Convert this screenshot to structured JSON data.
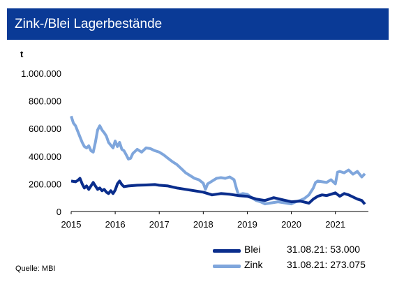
{
  "header": {
    "title": "Zink-/Blei Lagerbestände"
  },
  "source": "Quelle: MBI",
  "colors": {
    "header_bg": "#0a3a96",
    "blei": "#0a2d8c",
    "zink": "#7fa6dc"
  },
  "legend": [
    {
      "name": "Blei",
      "value_text": "31.08.21: 53.000",
      "color": "#0a2d8c"
    },
    {
      "name": "Zink",
      "value_text": "31.08.21: 273.075",
      "color": "#7fa6dc"
    }
  ],
  "chart_data": {
    "type": "line",
    "title": "",
    "ylabel": "t",
    "xlabel": "",
    "xlim": [
      2015,
      2021.75
    ],
    "ylim": [
      0,
      1000000
    ],
    "y_ticks": [
      0,
      200000,
      400000,
      600000,
      800000,
      1000000
    ],
    "y_tick_labels": [
      "0",
      "200.000",
      "400.000",
      "600.000",
      "800.000",
      "1.000.000"
    ],
    "x_ticks": [
      2015,
      2016,
      2017,
      2018,
      2019,
      2020,
      2021
    ],
    "x_tick_labels": [
      "2015",
      "2016",
      "2017",
      "2018",
      "2019",
      "2020",
      "2021"
    ],
    "grid": false,
    "legend_position": "bottom-right",
    "series": [
      {
        "name": "Zink",
        "x": [
          2015.0,
          2015.05,
          2015.1,
          2015.15,
          2015.2,
          2015.25,
          2015.3,
          2015.35,
          2015.4,
          2015.45,
          2015.5,
          2015.55,
          2015.6,
          2015.65,
          2015.7,
          2015.75,
          2015.8,
          2015.85,
          2015.9,
          2015.95,
          2016.0,
          2016.05,
          2016.1,
          2016.15,
          2016.2,
          2016.25,
          2016.3,
          2016.35,
          2016.4,
          2016.5,
          2016.6,
          2016.7,
          2016.8,
          2016.9,
          2017.0,
          2017.1,
          2017.2,
          2017.3,
          2017.4,
          2017.5,
          2017.6,
          2017.7,
          2017.8,
          2017.9,
          2018.0,
          2018.05,
          2018.1,
          2018.2,
          2018.3,
          2018.4,
          2018.5,
          2018.6,
          2018.7,
          2018.75,
          2018.8,
          2018.9,
          2019.0,
          2019.1,
          2019.2,
          2019.3,
          2019.4,
          2019.5,
          2019.6,
          2019.7,
          2019.8,
          2019.9,
          2020.0,
          2020.1,
          2020.2,
          2020.3,
          2020.4,
          2020.5,
          2020.55,
          2020.6,
          2020.7,
          2020.8,
          2020.9,
          2021.0,
          2021.05,
          2021.1,
          2021.2,
          2021.3,
          2021.4,
          2021.5,
          2021.6,
          2021.67
        ],
        "values": [
          690000,
          640000,
          620000,
          580000,
          540000,
          500000,
          470000,
          460000,
          475000,
          440000,
          430000,
          500000,
          590000,
          620000,
          590000,
          570000,
          545000,
          500000,
          480000,
          460000,
          510000,
          470000,
          500000,
          450000,
          440000,
          410000,
          380000,
          385000,
          420000,
          450000,
          430000,
          460000,
          455000,
          440000,
          430000,
          410000,
          385000,
          360000,
          340000,
          310000,
          280000,
          260000,
          240000,
          230000,
          205000,
          160000,
          200000,
          220000,
          240000,
          245000,
          240000,
          250000,
          230000,
          170000,
          120000,
          130000,
          125000,
          100000,
          80000,
          70000,
          55000,
          60000,
          65000,
          70000,
          65000,
          60000,
          55000,
          70000,
          80000,
          95000,
          120000,
          170000,
          210000,
          220000,
          215000,
          210000,
          230000,
          200000,
          285000,
          290000,
          280000,
          300000,
          270000,
          290000,
          250000,
          273075
        ]
      },
      {
        "name": "Blei",
        "x": [
          2015.0,
          2015.1,
          2015.15,
          2015.2,
          2015.25,
          2015.3,
          2015.35,
          2015.4,
          2015.5,
          2015.55,
          2015.6,
          2015.65,
          2015.7,
          2015.75,
          2015.8,
          2015.85,
          2015.9,
          2015.95,
          2016.0,
          2016.05,
          2016.1,
          2016.15,
          2016.2,
          2016.3,
          2016.5,
          2016.7,
          2016.9,
          2017.0,
          2017.2,
          2017.4,
          2017.6,
          2017.8,
          2018.0,
          2018.2,
          2018.4,
          2018.6,
          2018.8,
          2019.0,
          2019.2,
          2019.4,
          2019.6,
          2019.8,
          2020.0,
          2020.2,
          2020.4,
          2020.5,
          2020.6,
          2020.7,
          2020.8,
          2020.9,
          2021.0,
          2021.1,
          2021.2,
          2021.3,
          2021.4,
          2021.5,
          2021.6,
          2021.67
        ],
        "values": [
          220000,
          215000,
          225000,
          240000,
          200000,
          170000,
          185000,
          160000,
          210000,
          185000,
          160000,
          170000,
          150000,
          160000,
          140000,
          130000,
          150000,
          130000,
          155000,
          200000,
          220000,
          195000,
          180000,
          185000,
          190000,
          192000,
          195000,
          190000,
          185000,
          170000,
          160000,
          150000,
          140000,
          120000,
          130000,
          125000,
          115000,
          110000,
          90000,
          80000,
          100000,
          85000,
          70000,
          75000,
          60000,
          90000,
          110000,
          120000,
          115000,
          125000,
          135000,
          110000,
          130000,
          120000,
          105000,
          90000,
          80000,
          53000
        ]
      }
    ]
  }
}
